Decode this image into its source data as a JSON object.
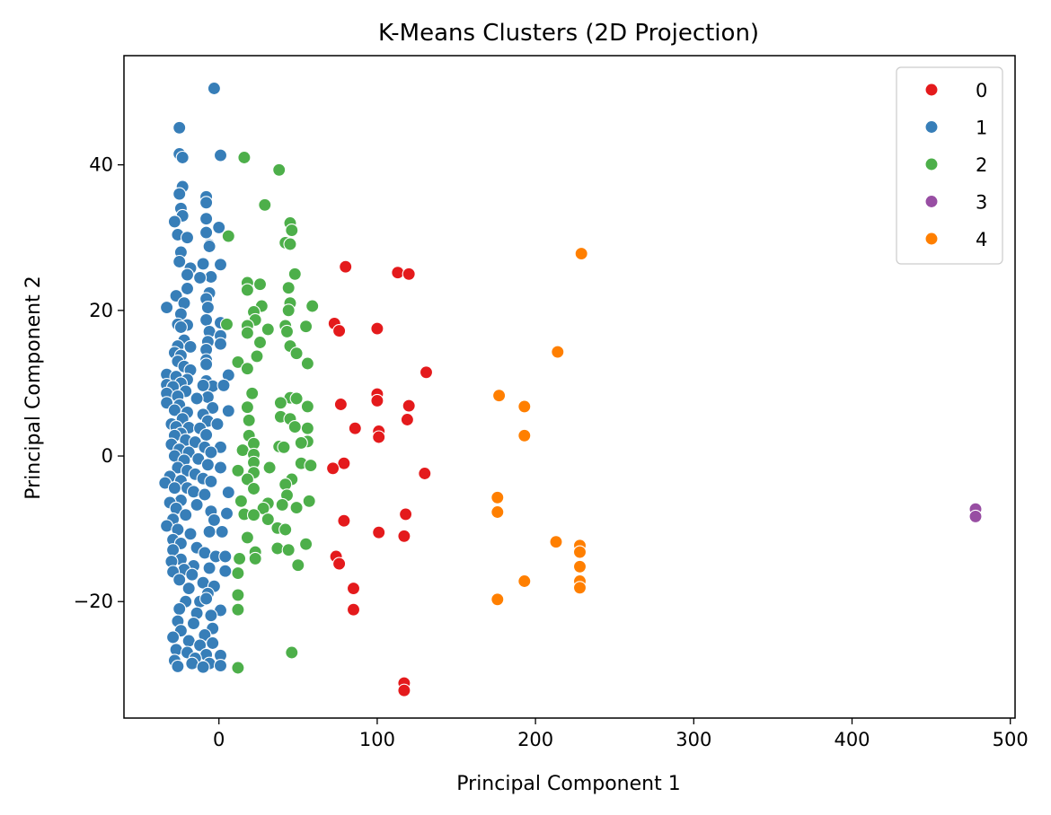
{
  "chart_data": {
    "type": "scatter",
    "title": "K-Means Clusters (2D Projection)",
    "xlabel": "Principal Component 1",
    "ylabel": "Principal Component 2",
    "xlim": [
      -60,
      503
    ],
    "ylim": [
      -36,
      55
    ],
    "xticks": [
      0,
      100,
      200,
      300,
      400,
      500
    ],
    "yticks": [
      -20,
      0,
      20,
      40
    ],
    "grid": false,
    "legend_position": "top-right",
    "series": [
      {
        "name": "0",
        "color": "#e41a1c",
        "points": [
          [
            80,
            26
          ],
          [
            113,
            25.2
          ],
          [
            120,
            25
          ],
          [
            73,
            18.2
          ],
          [
            76,
            17.2
          ],
          [
            100,
            17.5
          ],
          [
            131,
            11.5
          ],
          [
            100,
            8.5
          ],
          [
            100,
            7.6
          ],
          [
            77,
            7.1
          ],
          [
            120,
            6.9
          ],
          [
            119,
            5
          ],
          [
            86,
            3.8
          ],
          [
            101,
            3.4
          ],
          [
            101,
            2.6
          ],
          [
            79,
            -1
          ],
          [
            72,
            -1.7
          ],
          [
            130,
            -2.4
          ],
          [
            118,
            -8
          ],
          [
            79,
            -8.9
          ],
          [
            101,
            -10.5
          ],
          [
            117,
            -11
          ],
          [
            74,
            -13.8
          ],
          [
            76,
            -14.8
          ],
          [
            85,
            -18.2
          ],
          [
            85,
            -21.1
          ],
          [
            117,
            -31.2
          ],
          [
            117,
            -32.2
          ]
        ]
      },
      {
        "name": "1",
        "color": "#377eb8",
        "points": [
          [
            -3,
            50.5
          ],
          [
            -25,
            45.1
          ],
          [
            -25,
            41.5
          ],
          [
            1,
            41.3
          ],
          [
            -23,
            41
          ],
          [
            -23,
            37
          ],
          [
            -25,
            36
          ],
          [
            -8,
            35.6
          ],
          [
            -8,
            34.8
          ],
          [
            -24,
            34
          ],
          [
            -23,
            33
          ],
          [
            -8,
            32.6
          ],
          [
            -28,
            32.2
          ],
          [
            0,
            31.4
          ],
          [
            -26,
            30.4
          ],
          [
            -20,
            30
          ],
          [
            -8,
            30.7
          ],
          [
            -6,
            29
          ],
          [
            -24,
            28
          ],
          [
            -6,
            28.8
          ],
          [
            1,
            26.3
          ],
          [
            -25,
            26.7
          ],
          [
            -18,
            25.8
          ],
          [
            -10,
            26.4
          ],
          [
            -20,
            24.9
          ],
          [
            -5,
            24.6
          ],
          [
            -12,
            24.5
          ],
          [
            -20,
            23
          ],
          [
            -6,
            22.4
          ],
          [
            -27,
            22
          ],
          [
            -22,
            21
          ],
          [
            -8,
            21.6
          ],
          [
            -33,
            20.4
          ],
          [
            -24,
            19.5
          ],
          [
            -7,
            20.4
          ],
          [
            1,
            18.3
          ],
          [
            -26,
            18.1
          ],
          [
            -20,
            18
          ],
          [
            -8,
            18.7
          ],
          [
            -24,
            17.7
          ],
          [
            -6,
            17.1
          ],
          [
            1,
            16.5
          ],
          [
            -22,
            15.9
          ],
          [
            -7,
            15.7
          ],
          [
            1,
            15.4
          ],
          [
            -26,
            15.1
          ],
          [
            -18,
            15
          ],
          [
            -8,
            14.6
          ],
          [
            -28,
            14.2
          ],
          [
            -24,
            13.8
          ],
          [
            -8,
            13.2
          ],
          [
            -26,
            13
          ],
          [
            -22,
            12.3
          ],
          [
            -18,
            11.8
          ],
          [
            -8,
            12.6
          ],
          [
            -33,
            11.2
          ],
          [
            6,
            11.1
          ],
          [
            -27,
            10.9
          ],
          [
            -20,
            10.5
          ],
          [
            -8,
            10.3
          ],
          [
            -33,
            9.8
          ],
          [
            -24,
            10
          ],
          [
            -4,
            9.6
          ],
          [
            -10,
            9.7
          ],
          [
            3,
            9.7
          ],
          [
            -29,
            9.5
          ],
          [
            -33,
            8.6
          ],
          [
            -21,
            8.9
          ],
          [
            -26,
            8.2
          ],
          [
            -7,
            8.1
          ],
          [
            -14,
            7.9
          ],
          [
            -33,
            7.3
          ],
          [
            -25,
            7
          ],
          [
            -4,
            6.6
          ],
          [
            6,
            6.2
          ],
          [
            -28,
            6.3
          ],
          [
            -20,
            6
          ],
          [
            -10,
            5.7
          ],
          [
            -23,
            5.1
          ],
          [
            -30,
            4.4
          ],
          [
            -7,
            4.8
          ],
          [
            -27,
            4
          ],
          [
            -1,
            4.4
          ],
          [
            -19,
            3.9
          ],
          [
            -12,
            3.8
          ],
          [
            -24,
            3.1
          ],
          [
            -28,
            2.8
          ],
          [
            -8,
            2.9
          ],
          [
            -21,
            2.2
          ],
          [
            -15,
            1.9
          ],
          [
            -30,
            1.6
          ],
          [
            -25,
            0.9
          ],
          [
            1,
            1.2
          ],
          [
            -9,
            1.2
          ],
          [
            -19,
            0.5
          ],
          [
            -5,
            0.5
          ],
          [
            -28,
            0
          ],
          [
            -13,
            -0.4
          ],
          [
            -22,
            -0.6
          ],
          [
            -7,
            -1.2
          ],
          [
            -26,
            -1.6
          ],
          [
            -20,
            -2
          ],
          [
            1,
            -1.6
          ],
          [
            -15,
            -2.5
          ],
          [
            -31,
            -2.8
          ],
          [
            -10,
            -3.1
          ],
          [
            -24,
            -3.4
          ],
          [
            -5,
            -3.5
          ],
          [
            -34,
            -3.7
          ],
          [
            -20,
            -4.4
          ],
          [
            -28,
            -4.4
          ],
          [
            -16,
            -4.9
          ],
          [
            6,
            -5
          ],
          [
            -9,
            -5.3
          ],
          [
            -24,
            -6.1
          ],
          [
            -31,
            -6.4
          ],
          [
            -14,
            -6.7
          ],
          [
            -27,
            -7.2
          ],
          [
            -5,
            -7.6
          ],
          [
            5,
            -7.9
          ],
          [
            -21,
            -8.1
          ],
          [
            -29,
            -8.7
          ],
          [
            -3,
            -8.8
          ],
          [
            -33,
            -9.6
          ],
          [
            -26,
            -10.1
          ],
          [
            -18,
            -10.7
          ],
          [
            -6,
            -10.4
          ],
          [
            2,
            -10.4
          ],
          [
            -29,
            -11.5
          ],
          [
            -24,
            -12
          ],
          [
            -14,
            -12.6
          ],
          [
            -29,
            -12.9
          ],
          [
            -9,
            -13.3
          ],
          [
            -2,
            -13.8
          ],
          [
            4,
            -13.8
          ],
          [
            -24,
            -14.2
          ],
          [
            -30,
            -14.5
          ],
          [
            -16,
            -15.1
          ],
          [
            -6,
            -15.4
          ],
          [
            -22,
            -15.6
          ],
          [
            4,
            -15.8
          ],
          [
            -29,
            -15.9
          ],
          [
            -17,
            -16.3
          ],
          [
            -25,
            -17
          ],
          [
            -10,
            -17.4
          ],
          [
            -3,
            -17.9
          ],
          [
            -19,
            -18.2
          ],
          [
            -7,
            -18.9
          ],
          [
            -12,
            -20
          ],
          [
            -21,
            -20
          ],
          [
            -8,
            -19.6
          ],
          [
            -25,
            -21
          ],
          [
            1,
            -21.2
          ],
          [
            -14,
            -21.6
          ],
          [
            -5,
            -21.9
          ],
          [
            -26,
            -22.7
          ],
          [
            -16,
            -23
          ],
          [
            -4,
            -23.7
          ],
          [
            -24,
            -24
          ],
          [
            -9,
            -24.6
          ],
          [
            -29,
            -24.9
          ],
          [
            -19,
            -25.4
          ],
          [
            -4,
            -25.7
          ],
          [
            -12,
            -26
          ],
          [
            -27,
            -26.6
          ],
          [
            -20,
            -27
          ],
          [
            -8,
            -27.3
          ],
          [
            1,
            -27.4
          ],
          [
            -15,
            -27.8
          ],
          [
            -28,
            -28.1
          ],
          [
            -17,
            -28.5
          ],
          [
            -6,
            -28.5
          ],
          [
            -26,
            -28.9
          ],
          [
            1,
            -28.8
          ],
          [
            -10,
            -29
          ]
        ]
      },
      {
        "name": "2",
        "color": "#4daf4a",
        "points": [
          [
            16,
            41
          ],
          [
            38,
            39.3
          ],
          [
            29,
            34.5
          ],
          [
            45,
            32
          ],
          [
            46,
            31
          ],
          [
            6,
            30.2
          ],
          [
            42,
            29.3
          ],
          [
            45,
            29.1
          ],
          [
            48,
            25
          ],
          [
            18,
            23.8
          ],
          [
            26,
            23.6
          ],
          [
            18,
            22.8
          ],
          [
            44,
            23.1
          ],
          [
            45,
            21
          ],
          [
            27,
            20.6
          ],
          [
            59,
            20.6
          ],
          [
            22,
            19.8
          ],
          [
            44,
            20
          ],
          [
            23,
            18.7
          ],
          [
            5,
            18.1
          ],
          [
            18,
            17.9
          ],
          [
            42,
            17.9
          ],
          [
            55,
            17.8
          ],
          [
            31,
            17.4
          ],
          [
            18,
            16.9
          ],
          [
            43,
            17.1
          ],
          [
            26,
            15.6
          ],
          [
            45,
            15.1
          ],
          [
            49,
            14.1
          ],
          [
            24,
            13.7
          ],
          [
            56,
            12.7
          ],
          [
            12,
            12.9
          ],
          [
            18,
            12
          ],
          [
            21,
            8.6
          ],
          [
            45,
            8
          ],
          [
            49,
            7.9
          ],
          [
            39,
            7.3
          ],
          [
            56,
            6.8
          ],
          [
            18,
            6.7
          ],
          [
            39,
            5.4
          ],
          [
            45,
            5.1
          ],
          [
            19,
            4.9
          ],
          [
            48,
            4
          ],
          [
            56,
            3.8
          ],
          [
            19,
            2.8
          ],
          [
            56,
            2
          ],
          [
            22,
            1.7
          ],
          [
            38,
            1.3
          ],
          [
            52,
            1.8
          ],
          [
            15,
            0.8
          ],
          [
            22,
            0.2
          ],
          [
            41,
            1.2
          ],
          [
            22,
            -0.9
          ],
          [
            32,
            -1.6
          ],
          [
            52,
            -1
          ],
          [
            58,
            -1.3
          ],
          [
            12,
            -2
          ],
          [
            22,
            -2.3
          ],
          [
            46,
            -3.2
          ],
          [
            18,
            -3.2
          ],
          [
            42,
            -3.9
          ],
          [
            22,
            -4.5
          ],
          [
            43,
            -5.4
          ],
          [
            57,
            -6.2
          ],
          [
            14,
            -6.2
          ],
          [
            31,
            -6.5
          ],
          [
            40,
            -6.7
          ],
          [
            49,
            -7.1
          ],
          [
            28,
            -7.2
          ],
          [
            16,
            -8
          ],
          [
            22,
            -8.1
          ],
          [
            31,
            -8.7
          ],
          [
            37,
            -9.9
          ],
          [
            42,
            -10.1
          ],
          [
            18,
            -11.2
          ],
          [
            55,
            -12.1
          ],
          [
            37,
            -12.7
          ],
          [
            44,
            -12.9
          ],
          [
            23,
            -13.2
          ],
          [
            13,
            -14.1
          ],
          [
            23,
            -14.1
          ],
          [
            50,
            -15
          ],
          [
            12,
            -16.1
          ],
          [
            12,
            -19.1
          ],
          [
            12,
            -21.1
          ],
          [
            46,
            -27
          ],
          [
            12,
            -29.1
          ]
        ]
      },
      {
        "name": "3",
        "color": "#984ea3",
        "points": [
          [
            478,
            -7.3
          ],
          [
            478,
            -8.3
          ]
        ]
      },
      {
        "name": "4",
        "color": "#ff7f00",
        "points": [
          [
            229,
            27.8
          ],
          [
            214,
            14.3
          ],
          [
            177,
            8.3
          ],
          [
            193,
            6.8
          ],
          [
            193,
            2.8
          ],
          [
            176,
            -5.7
          ],
          [
            176,
            -7.7
          ],
          [
            213,
            -11.8
          ],
          [
            228,
            -12.3
          ],
          [
            228,
            -13.2
          ],
          [
            228,
            -15.2
          ],
          [
            228,
            -17.2
          ],
          [
            193,
            -17.2
          ],
          [
            228,
            -18.1
          ],
          [
            176,
            -19.7
          ]
        ]
      }
    ]
  }
}
